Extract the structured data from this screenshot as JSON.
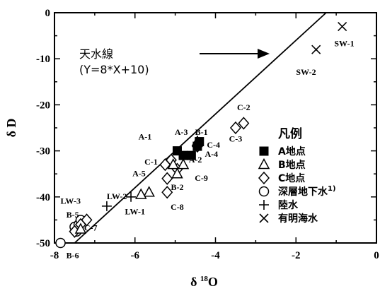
{
  "chart_data": {
    "type": "scatter",
    "xlabel": {
      "main": "δ",
      "sup": "18",
      "tail": "O"
    },
    "ylabel": "δ D",
    "xlim": [
      -8,
      0
    ],
    "ylim": [
      -50,
      0
    ],
    "xticks": [
      -8,
      -6,
      -4,
      -2,
      0
    ],
    "yticks": [
      0,
      -10,
      -20,
      -30,
      -40,
      -50
    ],
    "xtick_labels": [
      "-8",
      "-6",
      "-4",
      "-2",
      "0"
    ],
    "ytick_labels": [
      "0",
      "-10",
      "-20",
      "-30",
      "-40",
      "-50"
    ],
    "grid": false,
    "meteoric_line": {
      "label_line1": "天水線",
      "label_line2": "(Y=8*X+10)",
      "slope": 8,
      "intercept": 10
    },
    "legend": {
      "title": "凡例",
      "placement": "right-center",
      "entries": [
        {
          "key": "A",
          "label": "A地点",
          "marker": "filled-square"
        },
        {
          "key": "B",
          "label": "B地点",
          "marker": "open-triangle"
        },
        {
          "key": "C",
          "label": "C地点",
          "marker": "open-diamond"
        },
        {
          "key": "LW",
          "label": "深層地下水",
          "sup": "1)",
          "marker": "open-circle"
        },
        {
          "key": "RW",
          "label": "陸水",
          "marker": "plus"
        },
        {
          "key": "SW",
          "label": "有明海水",
          "marker": "cross"
        }
      ]
    },
    "series": [
      {
        "key": "A",
        "marker": "filled-square",
        "points": [
          [
            -4.95,
            -30
          ],
          [
            -4.8,
            -31
          ],
          [
            -4.6,
            -31
          ],
          [
            -4.45,
            -29
          ],
          [
            -4.4,
            -28
          ]
        ]
      },
      {
        "key": "B",
        "marker": "open-triangle",
        "points": [
          [
            -4.45,
            -28
          ],
          [
            -4.8,
            -33
          ],
          [
            -5.05,
            -33
          ],
          [
            -4.95,
            -35
          ],
          [
            -5.65,
            -39
          ],
          [
            -5.85,
            -39.5
          ],
          [
            -7.35,
            -47
          ]
        ]
      },
      {
        "key": "C",
        "marker": "open-diamond",
        "points": [
          [
            -3.3,
            -24
          ],
          [
            -3.5,
            -25
          ],
          [
            -4.45,
            -29
          ],
          [
            -5.1,
            -32
          ],
          [
            -5.25,
            -33
          ],
          [
            -4.95,
            -34
          ],
          [
            -5.2,
            -36
          ],
          [
            -5.2,
            -39
          ],
          [
            -7.2,
            -45
          ],
          [
            -7.35,
            -46
          ],
          [
            -7.5,
            -47.5
          ]
        ]
      },
      {
        "key": "LW",
        "marker": "open-circle",
        "points": [
          [
            -7.85,
            -50
          ],
          [
            -7.5,
            -46.5
          ],
          [
            -7.45,
            -47.5
          ],
          [
            -7.4,
            -46
          ],
          [
            -7.35,
            -45
          ]
        ]
      },
      {
        "key": "RW",
        "marker": "plus",
        "points": [
          [
            -6.1,
            -40
          ],
          [
            -6.7,
            -42
          ]
        ]
      },
      {
        "key": "SW",
        "marker": "cross",
        "points": [
          [
            -0.85,
            -3
          ],
          [
            -1.5,
            -8
          ]
        ]
      }
    ],
    "labels": [
      {
        "text": "SW-1",
        "x": -0.8,
        "y": -7.3
      },
      {
        "text": "SW-2",
        "x": -1.75,
        "y": -13.5
      },
      {
        "text": "C-2",
        "x": -3.3,
        "y": -21.2
      },
      {
        "text": "C-3",
        "x": -3.5,
        "y": -28
      },
      {
        "text": "B-1",
        "x": -4.35,
        "y": -26.5
      },
      {
        "text": "A-3",
        "x": -4.85,
        "y": -26.5
      },
      {
        "text": "A-1",
        "x": -5.75,
        "y": -27.5
      },
      {
        "text": "C-4",
        "x": -4.05,
        "y": -29.3
      },
      {
        "text": "A-4",
        "x": -4.1,
        "y": -31.3
      },
      {
        "text": "A-2",
        "x": -4.5,
        "y": -32.5
      },
      {
        "text": "C-1",
        "x": -5.6,
        "y": -33
      },
      {
        "text": "C-9",
        "x": -4.35,
        "y": -36.5
      },
      {
        "text": "A-5",
        "x": -5.9,
        "y": -35.5
      },
      {
        "text": "B-2",
        "x": -4.95,
        "y": -38.5
      },
      {
        "text": "C-8",
        "x": -4.95,
        "y": -42.8
      },
      {
        "text": "LW-3",
        "x": -7.6,
        "y": -41.5
      },
      {
        "text": "LW-2",
        "x": -6.45,
        "y": -40.5
      },
      {
        "text": "LW-1",
        "x": -6.0,
        "y": -43.8
      },
      {
        "text": "B-5",
        "x": -7.55,
        "y": -44.5
      },
      {
        "text": "C-7",
        "x": -7.1,
        "y": -47.3
      },
      {
        "text": "B-6",
        "x": -7.55,
        "y": -53.3
      }
    ]
  }
}
